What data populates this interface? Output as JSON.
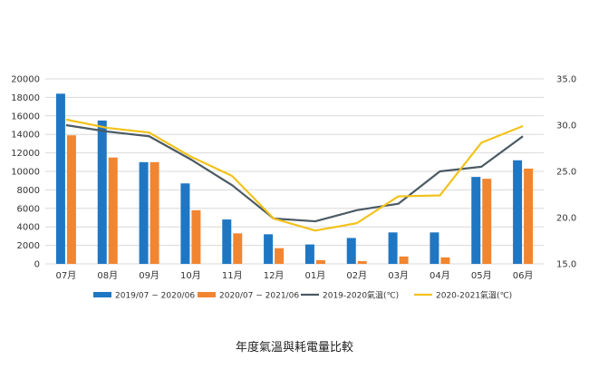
{
  "caption": "年度氣溫與耗電量比較",
  "colors": {
    "bar_2019": "#1f77c4",
    "bar_2020": "#f28530",
    "line_2019": "#4b5a63",
    "line_2020": "#f2c21b",
    "grid": "#d9d9d9"
  },
  "chart_data": {
    "type": "bar",
    "categories": [
      "07月",
      "08月",
      "09月",
      "10月",
      "11月",
      "12月",
      "01月",
      "02月",
      "03月",
      "04月",
      "05月",
      "06月"
    ],
    "series": [
      {
        "name": "2019/07 ~ 2020/06",
        "type": "bar",
        "axis": "left",
        "values": [
          18400,
          15500,
          11000,
          8700,
          4800,
          3200,
          2100,
          2800,
          3400,
          3400,
          9400,
          11200
        ]
      },
      {
        "name": "2020/07 ~ 2021/06",
        "type": "bar",
        "axis": "left",
        "values": [
          13900,
          11500,
          11000,
          5800,
          3300,
          1700,
          400,
          300,
          800,
          700,
          9200,
          10300
        ]
      },
      {
        "name": "2019-2020氣溫(℃)",
        "type": "line",
        "axis": "right",
        "values": [
          30.0,
          29.3,
          28.8,
          26.3,
          23.5,
          19.9,
          19.6,
          20.8,
          21.5,
          25.0,
          25.5,
          28.8
        ]
      },
      {
        "name": "2020-2021氣溫(℃)",
        "type": "line",
        "axis": "right",
        "values": [
          30.6,
          29.7,
          29.2,
          26.6,
          24.5,
          19.9,
          18.6,
          19.4,
          22.3,
          22.4,
          28.1,
          29.9
        ]
      }
    ],
    "y_left": {
      "min": 0,
      "max": 20000,
      "step": 2000,
      "ticks": [
        "0",
        "2000",
        "4000",
        "6000",
        "8000",
        "10000",
        "12000",
        "14000",
        "16000",
        "18000",
        "20000"
      ]
    },
    "y_right": {
      "min": 15.0,
      "max": 35.0,
      "step": 5,
      "ticks": [
        "15.0",
        "20.0",
        "25.0",
        "30.0",
        "35.0"
      ]
    },
    "grid": true,
    "legend_position": "bottom"
  }
}
